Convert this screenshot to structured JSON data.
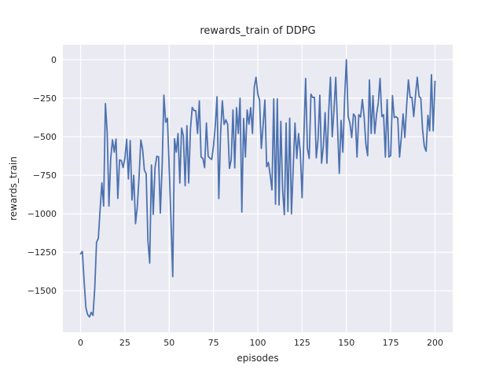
{
  "chart_data": {
    "type": "line",
    "title": "rewards_train of DDPG",
    "xlabel": "episodes",
    "ylabel": "rewards_train",
    "x_ticks": [
      0,
      25,
      50,
      75,
      100,
      125,
      150,
      175,
      200
    ],
    "y_ticks": [
      0,
      -250,
      -500,
      -750,
      -1000,
      -1250,
      -1500
    ],
    "xlim": [
      -10,
      210
    ],
    "ylim": [
      -1769,
      97
    ],
    "grid": true,
    "legend": "none",
    "line_color": "#4c72b0",
    "plot_bg": "#eaeaf2",
    "grid_color": "#ffffff",
    "text_color": "#262626",
    "x_start": 0,
    "x_step": 1,
    "values": [
      -1260,
      -1245,
      -1440,
      -1610,
      -1655,
      -1670,
      -1640,
      -1660,
      -1480,
      -1185,
      -1160,
      -975,
      -800,
      -950,
      -285,
      -470,
      -950,
      -640,
      -520,
      -600,
      -515,
      -900,
      -650,
      -655,
      -700,
      -640,
      -516,
      -774,
      -525,
      -911,
      -750,
      -1064,
      -955,
      -760,
      -521,
      -580,
      -717,
      -740,
      -1176,
      -1320,
      -683,
      -1004,
      -700,
      -627,
      -630,
      -996,
      -700,
      -230,
      -406,
      -380,
      -700,
      -1040,
      -1408,
      -513,
      -600,
      -479,
      -800,
      -444,
      -495,
      -818,
      -428,
      -800,
      -450,
      -310,
      -330,
      -330,
      -479,
      -267,
      -632,
      -640,
      -701,
      -411,
      -627,
      -640,
      -647,
      -560,
      -430,
      -240,
      -901,
      -480,
      -267,
      -420,
      -390,
      -420,
      -706,
      -650,
      -326,
      -702,
      -311,
      -479,
      -250,
      -989,
      -382,
      -632,
      -326,
      -418,
      -311,
      -479,
      -180,
      -114,
      -224,
      -262,
      -576,
      -428,
      -262,
      -695,
      -666,
      -750,
      -845,
      -254,
      -938,
      -254,
      -943,
      -400,
      -845,
      -1006,
      -411,
      -985,
      -380,
      -1000,
      -700,
      -411,
      -641,
      -479,
      -600,
      -896,
      -500,
      -122,
      -576,
      -641,
      -224,
      -245,
      -245,
      -637,
      -520,
      -230,
      -672,
      -564,
      -343,
      -672,
      -340,
      -114,
      -500,
      -326,
      -114,
      -430,
      -738,
      -394,
      -600,
      -250,
      0,
      -369,
      -411,
      -505,
      -352,
      -369,
      -632,
      -357,
      -372,
      -258,
      -369,
      -550,
      -623,
      -131,
      -479,
      -233,
      -479,
      -357,
      -280,
      -122,
      -369,
      -357,
      -632,
      -258,
      -632,
      -623,
      -233,
      -375,
      -370,
      -380,
      -632,
      -505,
      -352,
      -505,
      -300,
      -131,
      -245,
      -245,
      -369,
      -233,
      -114,
      -238,
      -250,
      -454,
      -564,
      -594,
      -361,
      -462,
      -97,
      -462,
      -140
    ]
  }
}
